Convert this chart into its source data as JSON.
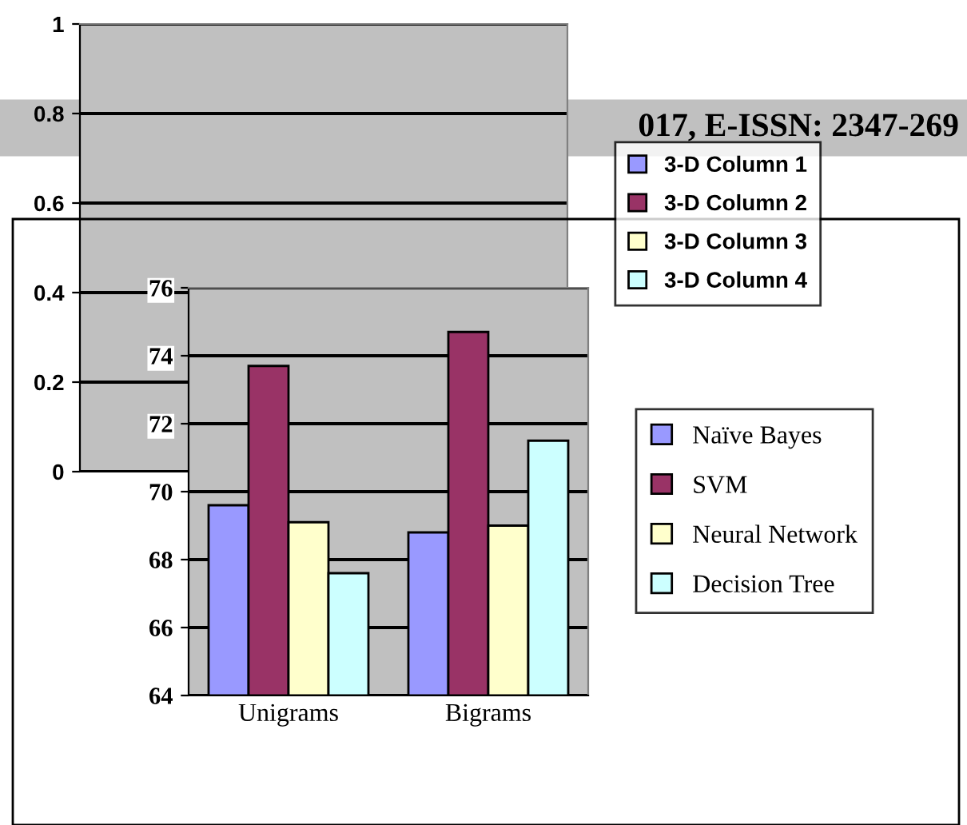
{
  "chart_data": [
    {
      "type": "bar",
      "categories": [
        null
      ],
      "ylim": [
        0,
        1
      ],
      "yticks": [
        0,
        0.2,
        0.4,
        0.6,
        0.8,
        1
      ],
      "grid": "y",
      "legend": "right",
      "tick_labels": "y",
      "annotations": [
        "017, E-ISSN: 2347-269"
      ],
      "series": [
        {
          "name": "3-D Column 1",
          "color": "#9999ff",
          "values": [
            null
          ]
        },
        {
          "name": "3-D Column 2",
          "color": "#993366",
          "values": [
            null
          ]
        },
        {
          "name": "3-D Column 3",
          "color": "#ffffcc",
          "values": [
            null
          ]
        },
        {
          "name": "3-D Column 4",
          "color": "#ccffff",
          "values": [
            null
          ]
        }
      ]
    },
    {
      "type": "bar",
      "categories": [
        "Unigrams",
        "Bigrams"
      ],
      "ylim": [
        64,
        76
      ],
      "yticks": [
        64,
        66,
        68,
        70,
        72,
        74,
        76
      ],
      "grid": "y",
      "legend": "right",
      "series": [
        {
          "name": "Naïve Bayes",
          "color": "#9999ff",
          "values": [
            69.6,
            68.8
          ]
        },
        {
          "name": "SVM",
          "color": "#993366",
          "values": [
            73.7,
            74.7
          ]
        },
        {
          "name": "Neural Network",
          "color": "#ffffcc",
          "values": [
            69.1,
            69.0
          ]
        },
        {
          "name": "Decision Tree",
          "color": "#ccffff",
          "values": [
            67.6,
            71.5
          ]
        }
      ]
    }
  ]
}
